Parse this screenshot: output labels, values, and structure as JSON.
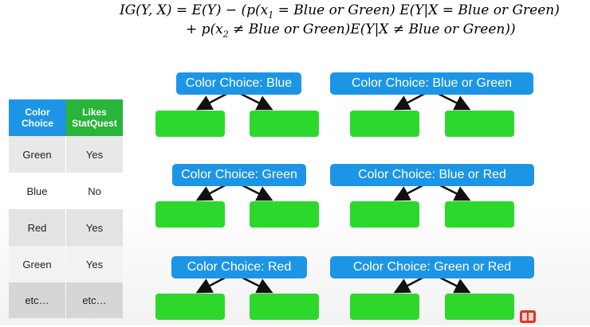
{
  "formula": {
    "line1_a": "IG(Y, X) = E(Y) − (p(x",
    "line1_sub": "1",
    "line1_b": " = Blue or Green) E(Y|X  = Blue or Green)",
    "line2_a": "+ p(x",
    "line2_sub": "2",
    "line2_b": " ≠ Blue or Green)E(Y|X ≠ Blue or Green))"
  },
  "table": {
    "headers": [
      "Color\nChoice",
      "Likes\nStatQuest"
    ],
    "header_colors": [
      "#1d95e6",
      "#29b53a"
    ],
    "rows": [
      [
        "Green",
        "Yes"
      ],
      [
        "Blue",
        "No"
      ],
      [
        "Red",
        "Yes"
      ],
      [
        "Green",
        "Yes"
      ],
      [
        "etc…",
        "etc…"
      ]
    ]
  },
  "trees": [
    {
      "root": "Color Choice: Blue"
    },
    {
      "root": "Color Choice: Blue or Green"
    },
    {
      "root": "Color Choice: Green"
    },
    {
      "root": "Color Choice: Blue or Red"
    },
    {
      "root": "Color Choice: Red"
    },
    {
      "root": "Color Choice: Green or Red"
    }
  ],
  "colors": {
    "root": "#1d95e6",
    "leaf": "#2dd82d"
  }
}
